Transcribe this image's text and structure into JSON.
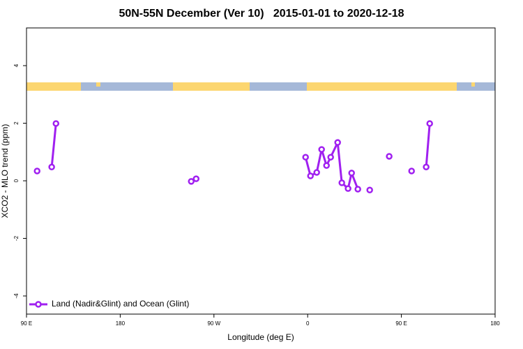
{
  "chart_data": {
    "type": "line",
    "title": "50N-55N December (Ver 10)   2015-01-01 to 2020-12-18",
    "x_label": "Longitude (deg E)",
    "y_label": "XCO2 - MLO trend (ppm)",
    "xlim": [
      -270,
      180
    ],
    "xticks": [
      {
        "value": -270,
        "label": "90 E"
      },
      {
        "value": -180,
        "label": "180"
      },
      {
        "value": -90,
        "label": "90 W"
      },
      0,
      {
        "value": 90,
        "label": "90 E"
      },
      {
        "value": 180,
        "label": "180"
      }
    ],
    "ylim": [
      -4.63,
      5.31
    ],
    "yticks": [
      -4,
      -2,
      0,
      2,
      4
    ],
    "legend": "bottom-left",
    "series": [
      {
        "name": "Land (Nadir&Glint) and Ocean (Glint)",
        "color": "#a020f0",
        "x": [
          -259.8,
          null,
          -245.8,
          -241.7,
          null,
          -111.8,
          -107.1,
          null,
          -2,
          2.7,
          8.7,
          13.4,
          18.1,
          22.1,
          28.8,
          32.8,
          38.8,
          42.2,
          48.2,
          null,
          59.6,
          null,
          78.3,
          null,
          99.8,
          null,
          113.8,
          117.2
        ],
        "values": [
          0.34,
          null,
          0.48,
          1.99,
          null,
          -0.02,
          0.07,
          null,
          0.82,
          0.17,
          0.29,
          1.09,
          0.53,
          0.82,
          1.33,
          -0.07,
          -0.27,
          0.27,
          -0.29,
          null,
          -0.32,
          null,
          0.85,
          null,
          0.34,
          null,
          0.48,
          1.99
        ]
      }
    ]
  }
}
